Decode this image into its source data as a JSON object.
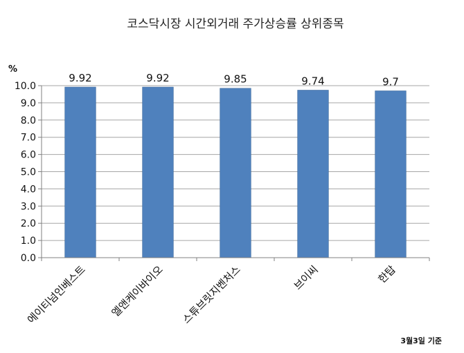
{
  "chart_data": {
    "type": "bar",
    "title": "코스닥시장 시간외거래  주가상승률 상위종목",
    "ylabel": "%",
    "ylim": [
      0,
      10
    ],
    "yticks": [
      "0.0",
      "1.0",
      "2.0",
      "3.0",
      "4.0",
      "5.0",
      "6.0",
      "7.0",
      "8.0",
      "9.0",
      "10.0"
    ],
    "categories": [
      "에이티넘인베스트",
      "엘앤케이바이오",
      "스튜브릿지벤처스",
      "브이씨",
      "한탑"
    ],
    "values": [
      9.92,
      9.92,
      9.85,
      9.74,
      9.7
    ],
    "data_labels": [
      "9.92",
      "9.92",
      "9.85",
      "9.74",
      "9.7"
    ],
    "grid": true,
    "legend": "none",
    "colors": {
      "bar": "#4F81BD",
      "bar_edge": "#3A6496",
      "grid": "#A6A6A6",
      "axis": "#808080"
    },
    "footnote": "3월3일 기준"
  }
}
